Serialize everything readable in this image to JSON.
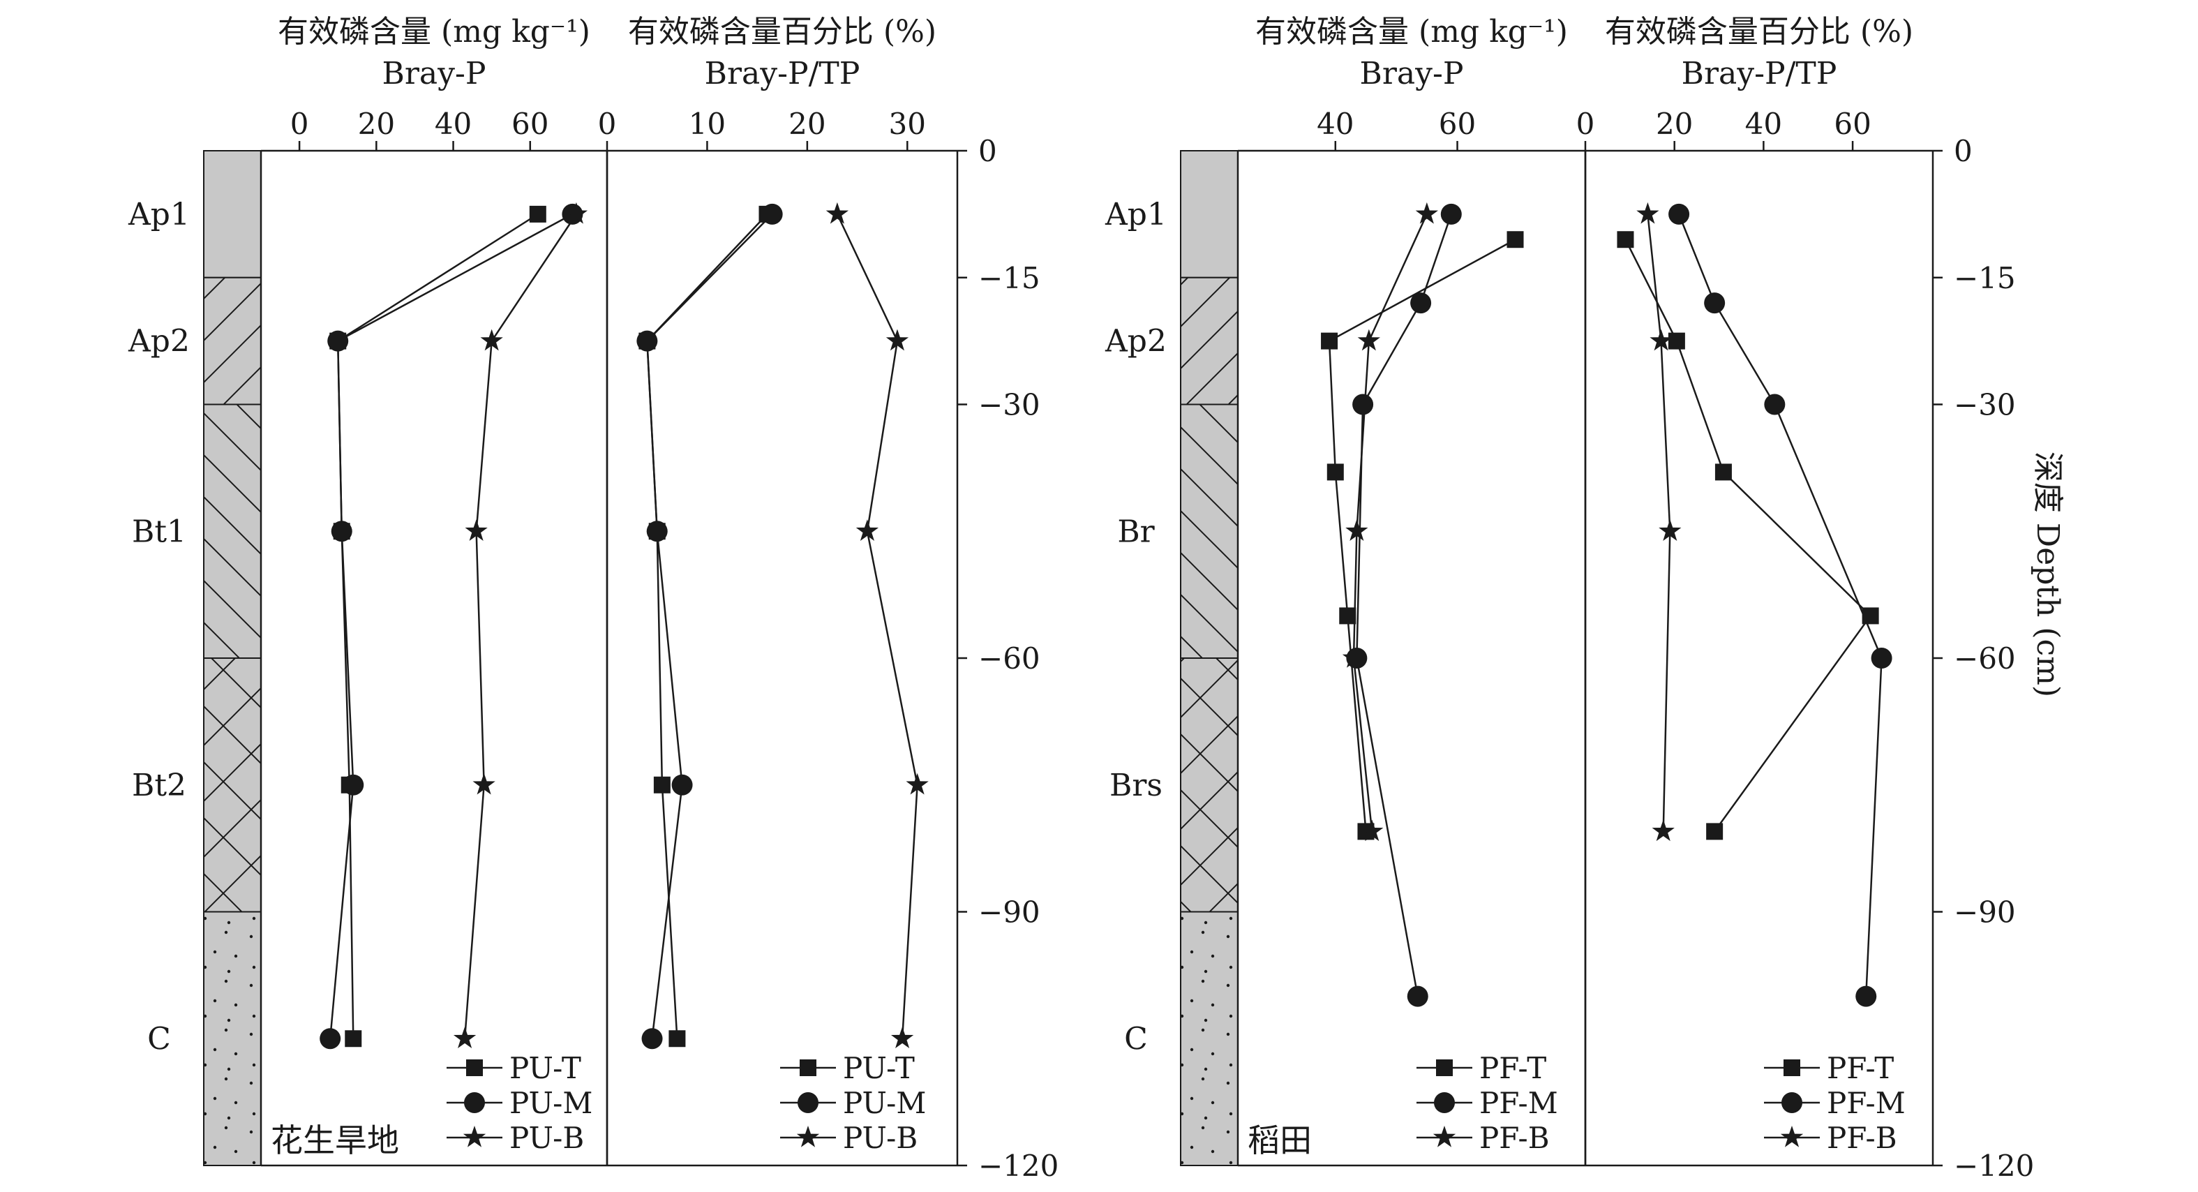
{
  "chart_data": [
    {
      "type": "line",
      "panel_label": "花生旱地",
      "title": "有效磷含量 (mg kg⁻¹)",
      "subtitle": "Bray-P",
      "ylabel": "",
      "xlim": [
        -10,
        80
      ],
      "xticks": [
        0,
        20,
        40,
        60
      ],
      "ylim": [
        0,
        -120
      ],
      "yticks": [
        0,
        -15,
        -30,
        -60,
        -90,
        -120
      ],
      "legend": "bottom-right",
      "series": [
        {
          "name": "PU-T",
          "marker": "square",
          "x": [
            62,
            10,
            11,
            13,
            14
          ],
          "y": [
            -7.5,
            -22.5,
            -45,
            -75,
            -105
          ]
        },
        {
          "name": "PU-M",
          "marker": "circle",
          "x": [
            71,
            10,
            11,
            14,
            8
          ],
          "y": [
            -7.5,
            -22.5,
            -45,
            -75,
            -105
          ]
        },
        {
          "name": "PU-B",
          "marker": "star",
          "x": [
            72,
            50,
            46,
            48,
            43
          ],
          "y": [
            -7.5,
            -22.5,
            -45,
            -75,
            -105
          ]
        }
      ]
    },
    {
      "type": "line",
      "panel_label": "",
      "title": "有效磷含量百分比 (%)",
      "subtitle": "Bray-P/TP",
      "ylabel": "",
      "xlim": [
        0,
        35
      ],
      "xticks": [
        0,
        10,
        20,
        30
      ],
      "ylim": [
        0,
        -120
      ],
      "yticks": [
        0,
        -15,
        -30,
        -60,
        -90,
        -120
      ],
      "legend": "bottom-right",
      "series": [
        {
          "name": "PU-T",
          "marker": "square",
          "x": [
            16,
            4,
            5,
            5.5,
            7
          ],
          "y": [
            -7.5,
            -22.5,
            -45,
            -75,
            -105
          ]
        },
        {
          "name": "PU-M",
          "marker": "circle",
          "x": [
            16.5,
            4,
            5,
            7.5,
            4.5
          ],
          "y": [
            -7.5,
            -22.5,
            -45,
            -75,
            -105
          ]
        },
        {
          "name": "PU-B",
          "marker": "star",
          "x": [
            23,
            29,
            26,
            31,
            29.5
          ],
          "y": [
            -7.5,
            -22.5,
            -45,
            -75,
            -105
          ]
        }
      ]
    },
    {
      "type": "line",
      "panel_label": "稻田",
      "title": "有效磷含量 (mg kg⁻¹)",
      "subtitle": "Bray-P",
      "ylabel": "",
      "xlim": [
        24,
        81
      ],
      "xticks": [
        40,
        60
      ],
      "ylim": [
        0,
        -120
      ],
      "yticks": [
        0,
        -15,
        -30,
        -60,
        -90,
        -120
      ],
      "legend": "bottom-right",
      "series": [
        {
          "name": "PF-T",
          "marker": "square",
          "x": [
            69.5,
            39,
            40,
            42,
            45
          ],
          "y": [
            -10.5,
            -22.5,
            -38,
            -55,
            -80.5
          ]
        },
        {
          "name": "PF-M",
          "marker": "circle",
          "x": [
            59,
            54,
            44.5,
            43.5,
            53.5
          ],
          "y": [
            -7.5,
            -18,
            -30,
            -60,
            -100
          ]
        },
        {
          "name": "PF-B",
          "marker": "star",
          "x": [
            55,
            45.5,
            43.5,
            43,
            46
          ],
          "y": [
            -7.5,
            -22.5,
            -45,
            -60,
            -80.5
          ]
        }
      ]
    },
    {
      "type": "line",
      "panel_label": "",
      "title": "有效磷含量百分比 (%)",
      "subtitle": "Bray-P/TP",
      "ylabel": "深度 Depth (cm)",
      "xlim": [
        0,
        78
      ],
      "xticks": [
        0,
        20,
        40,
        60
      ],
      "ylim": [
        0,
        -120
      ],
      "yticks": [
        0,
        -15,
        -30,
        -60,
        -90,
        -120
      ],
      "legend": "bottom-right",
      "series": [
        {
          "name": "PF-T",
          "marker": "square",
          "x": [
            9,
            20.5,
            31,
            64,
            29
          ],
          "y": [
            -10.5,
            -22.5,
            -38,
            -55,
            -80.5
          ]
        },
        {
          "name": "PF-M",
          "marker": "circle",
          "x": [
            21,
            29,
            42.5,
            66.5,
            63
          ],
          "y": [
            -7.5,
            -18,
            -30,
            -60,
            -100
          ]
        },
        {
          "name": "PF-B",
          "marker": "star",
          "x": [
            14,
            17,
            19,
            17.5
          ],
          "y": [
            -7.5,
            -22.5,
            -45,
            -80.5
          ]
        }
      ]
    }
  ],
  "profiles": [
    {
      "horizons": [
        {
          "name": "Ap1",
          "top": 0,
          "bottom": -15,
          "label_depth": -7.5,
          "pattern": "plain"
        },
        {
          "name": "Ap2",
          "top": -15,
          "bottom": -30,
          "label_depth": -22.5,
          "pattern": "slash"
        },
        {
          "name": "Bt1",
          "top": -30,
          "bottom": -60,
          "label_depth": -45,
          "pattern": "backslash"
        },
        {
          "name": "Bt2",
          "top": -60,
          "bottom": -90,
          "label_depth": -75,
          "pattern": "cross"
        },
        {
          "name": "C",
          "top": -90,
          "bottom": -120,
          "label_depth": -105,
          "pattern": "dots"
        }
      ]
    },
    {
      "horizons": [
        {
          "name": "Ap1",
          "top": 0,
          "bottom": -15,
          "label_depth": -7.5,
          "pattern": "plain"
        },
        {
          "name": "Ap2",
          "top": -15,
          "bottom": -30,
          "label_depth": -22.5,
          "pattern": "slash"
        },
        {
          "name": "Br",
          "top": -30,
          "bottom": -60,
          "label_depth": -45,
          "pattern": "backslash"
        },
        {
          "name": "Brs",
          "top": -60,
          "bottom": -90,
          "label_depth": -75,
          "pattern": "cross"
        },
        {
          "name": "C",
          "top": -90,
          "bottom": -120,
          "label_depth": -105,
          "pattern": "dots"
        }
      ]
    }
  ],
  "colors": {
    "ink": "#1a1a1a",
    "horizon_fill": "#c8c8c8"
  }
}
